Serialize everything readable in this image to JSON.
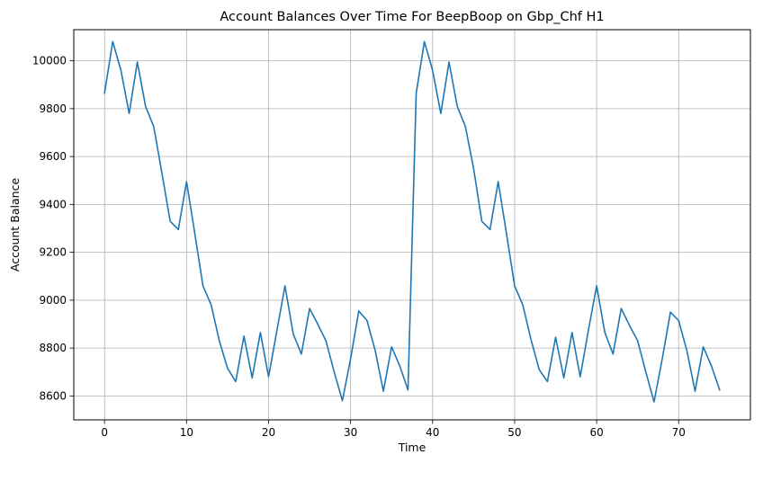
{
  "chart_data": {
    "type": "line",
    "title": "Account Balances Over Time For BeepBoop on Gbp_Chf H1",
    "xlabel": "Time",
    "ylabel": "Account Balance",
    "xlim": [
      -3.75,
      78.75
    ],
    "ylim": [
      8500,
      10130
    ],
    "xticks": [
      0,
      10,
      20,
      30,
      40,
      50,
      60,
      70
    ],
    "yticks": [
      8600,
      8800,
      9000,
      9200,
      9400,
      9600,
      9800,
      10000
    ],
    "grid": true,
    "series": [
      {
        "color": "#1f77b4",
        "x": [
          0,
          1,
          2,
          3,
          4,
          5,
          6,
          7,
          8,
          9,
          10,
          11,
          12,
          13,
          14,
          15,
          16,
          17,
          18,
          19,
          20,
          21,
          22,
          23,
          24,
          25,
          26,
          27,
          28,
          29,
          30,
          31,
          32,
          33,
          34,
          35,
          36,
          37,
          38,
          39,
          40,
          41,
          42,
          43,
          44,
          45,
          46,
          47,
          48,
          49,
          50,
          51,
          52,
          53,
          54,
          55,
          56,
          57,
          58,
          59,
          60,
          61,
          62,
          63,
          64,
          65,
          66,
          67,
          68,
          69,
          70,
          71,
          72,
          73,
          74,
          75
        ],
        "values": [
          9865,
          10080,
          9960,
          9780,
          9995,
          9810,
          9725,
          9530,
          9330,
          9295,
          9495,
          9280,
          9060,
          8980,
          8830,
          8715,
          8660,
          8850,
          8675,
          8865,
          8680,
          8870,
          9060,
          8860,
          8775,
          8965,
          8900,
          8830,
          8700,
          8580,
          8755,
          8955,
          8915,
          8790,
          8620,
          8805,
          8725,
          8625,
          9865,
          10080,
          9960,
          9780,
          9995,
          9810,
          9725,
          9550,
          9330,
          9295,
          9495,
          9280,
          9060,
          8980,
          8835,
          8710,
          8660,
          8845,
          8675,
          8865,
          8680,
          8875,
          9060,
          8865,
          8775,
          8965,
          8895,
          8830,
          8700,
          8575,
          8755,
          8950,
          8915,
          8790,
          8620,
          8805,
          8725,
          8625
        ]
      }
    ]
  }
}
